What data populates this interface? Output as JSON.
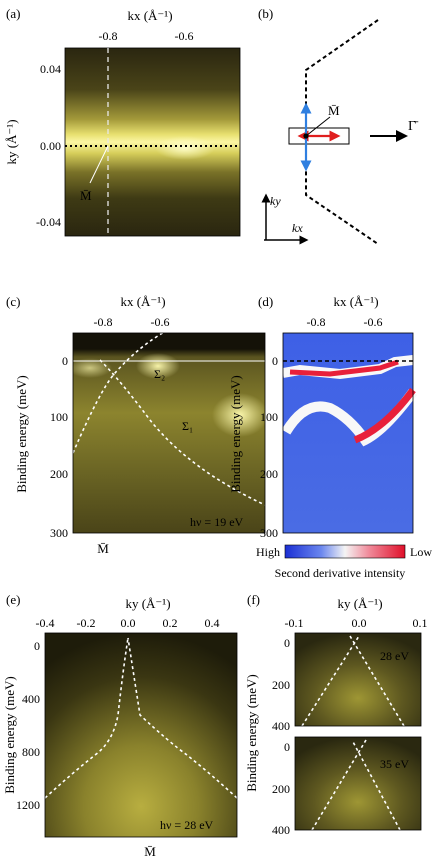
{
  "panels": {
    "a": {
      "label": "(a)",
      "x_axis_title": "kx (Å⁻¹)",
      "x_ticks": [
        "-0.8",
        "-0.6"
      ],
      "y_axis_title": "ky (Å⁻¹)",
      "y_ticks": [
        "0.04",
        "0.00",
        "-0.04"
      ],
      "point_label": "M̄"
    },
    "b": {
      "label": "(b)",
      "point_label": "M̄",
      "direction_label": "Γ̄",
      "axis_y": "ky",
      "axis_x": "kx"
    },
    "c": {
      "label": "(c)",
      "x_axis_title": "kx (Å⁻¹)",
      "x_ticks": [
        "-0.8",
        "-0.6"
      ],
      "y_axis_title": "Binding energy (meV)",
      "y_ticks": [
        "0",
        "100",
        "200",
        "300"
      ],
      "band_label_1": "Σ₁",
      "band_label_2": "Σ₂",
      "photon_energy": "hν = 19 eV",
      "bottom_label": "M̄"
    },
    "d": {
      "label": "(d)",
      "x_axis_title": "kx (Å⁻¹)",
      "x_ticks": [
        "-0.8",
        "-0.6"
      ],
      "y_axis_title": "Binding energy (meV)",
      "y_ticks": [
        "0",
        "100",
        "200",
        "300"
      ],
      "colorbar_high": "High",
      "colorbar_low": "Low",
      "colorbar_title": "Second derivative intensity"
    },
    "e": {
      "label": "(e)",
      "x_axis_title": "ky (Å⁻¹)",
      "x_ticks": [
        "-0.4",
        "-0.2",
        "0.0",
        "0.2",
        "0.4"
      ],
      "y_axis_title": "Binding energy (meV)",
      "y_ticks": [
        "0",
        "400",
        "800",
        "1200"
      ],
      "photon_energy": "hν = 28 eV",
      "bottom_label": "M̄"
    },
    "f": {
      "label": "(f)",
      "x_axis_title": "ky (Å⁻¹)",
      "x_ticks": [
        "-0.1",
        "0.0",
        "0.1"
      ],
      "y_axis_title": "Binding energy (meV)",
      "y_ticks_top": [
        "0",
        "200",
        "400"
      ],
      "y_ticks_bottom": [
        "0",
        "200",
        "400"
      ],
      "photon_energy_top": "28 eV",
      "photon_energy_bottom": "35 eV"
    }
  },
  "colors": {
    "arpes_dark": "#1a1808",
    "arpes_bright": "#f4f08a",
    "cmap_high": "#1b2fd4",
    "cmap_low": "#e0102a",
    "arrow_blue": "#2f7fe0",
    "arrow_red": "#e01e1e"
  }
}
